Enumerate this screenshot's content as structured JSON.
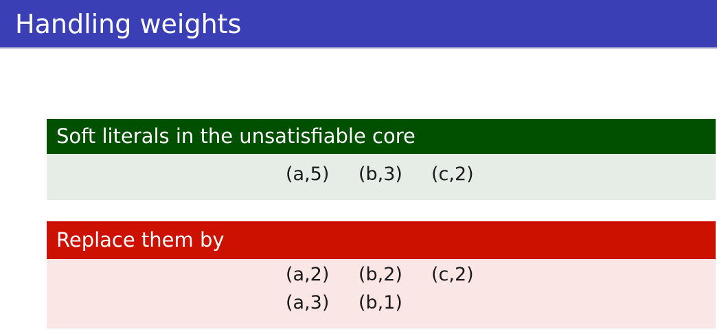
{
  "slide": {
    "title": "Handling weights"
  },
  "core_block": {
    "header": "Soft literals in the unsatisfiable core",
    "rows": [
      [
        "(a,5)",
        "(b,3)",
        "(c,2)"
      ]
    ]
  },
  "replace_block": {
    "header": "Replace them by",
    "rows": [
      [
        "(a,2)",
        "(b,2)",
        "(c,2)"
      ],
      [
        "(a,3)",
        "(b,1)"
      ]
    ]
  },
  "colors": {
    "title_bar": "#3b3fb6",
    "green_header": "#005000",
    "green_body": "#e6ede6",
    "red_header": "#cc1100",
    "red_body": "#fbe6e6"
  }
}
